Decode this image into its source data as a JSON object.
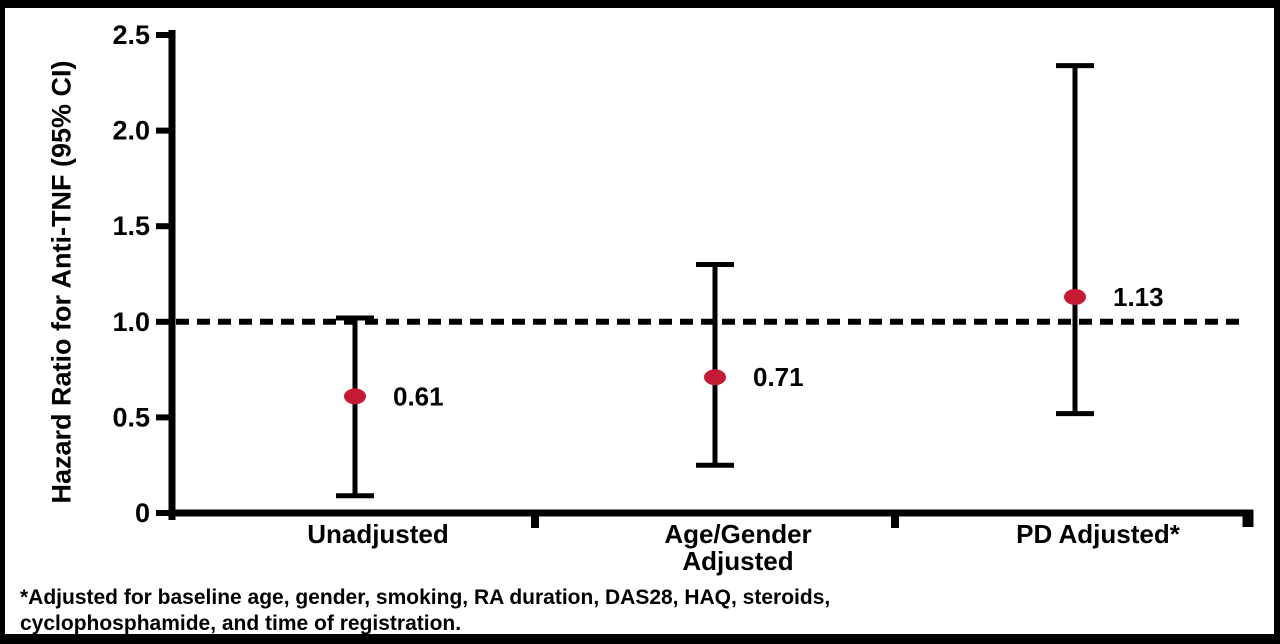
{
  "figure": {
    "footnote": {
      "lines": [
        "*Adjusted for baseline age, gender, smoking, RA duration, DAS28, HAQ, steroids,",
        "cyclophosphamide, and time of registration."
      ]
    }
  },
  "chart_data": {
    "type": "scatter",
    "subtype": "forest-plot-error-bars",
    "title": "",
    "xlabel": "",
    "ylabel": "Hazard Ratio for Anti-TNF (95% CI)",
    "ylim": [
      0,
      2.5
    ],
    "yticks": [
      0,
      0.5,
      1.0,
      1.5,
      2.0,
      2.5
    ],
    "ytick_labels": [
      "0",
      "0.5",
      "1.0",
      "1.5",
      "2.0",
      "2.5"
    ],
    "grid": false,
    "reference_line_y": 1.0,
    "reference_line_style": "dashed",
    "categories": [
      "Unadjusted",
      "Age/Gender\nAdjusted",
      "PD Adjusted*"
    ],
    "points": [
      {
        "category": "Unadjusted",
        "hr": 0.61,
        "ci_low": 0.09,
        "ci_high": 1.02,
        "value_label": "0.61"
      },
      {
        "category": "Age/Gender Adjusted",
        "hr": 0.71,
        "ci_low": 0.25,
        "ci_high": 1.3,
        "value_label": "0.71"
      },
      {
        "category": "PD Adjusted*",
        "hr": 1.13,
        "ci_low": 0.52,
        "ci_high": 2.34,
        "value_label": "1.13"
      }
    ],
    "colors": {
      "marker": "#c41a33",
      "axis": "#000000",
      "background": "#ffffff"
    }
  }
}
